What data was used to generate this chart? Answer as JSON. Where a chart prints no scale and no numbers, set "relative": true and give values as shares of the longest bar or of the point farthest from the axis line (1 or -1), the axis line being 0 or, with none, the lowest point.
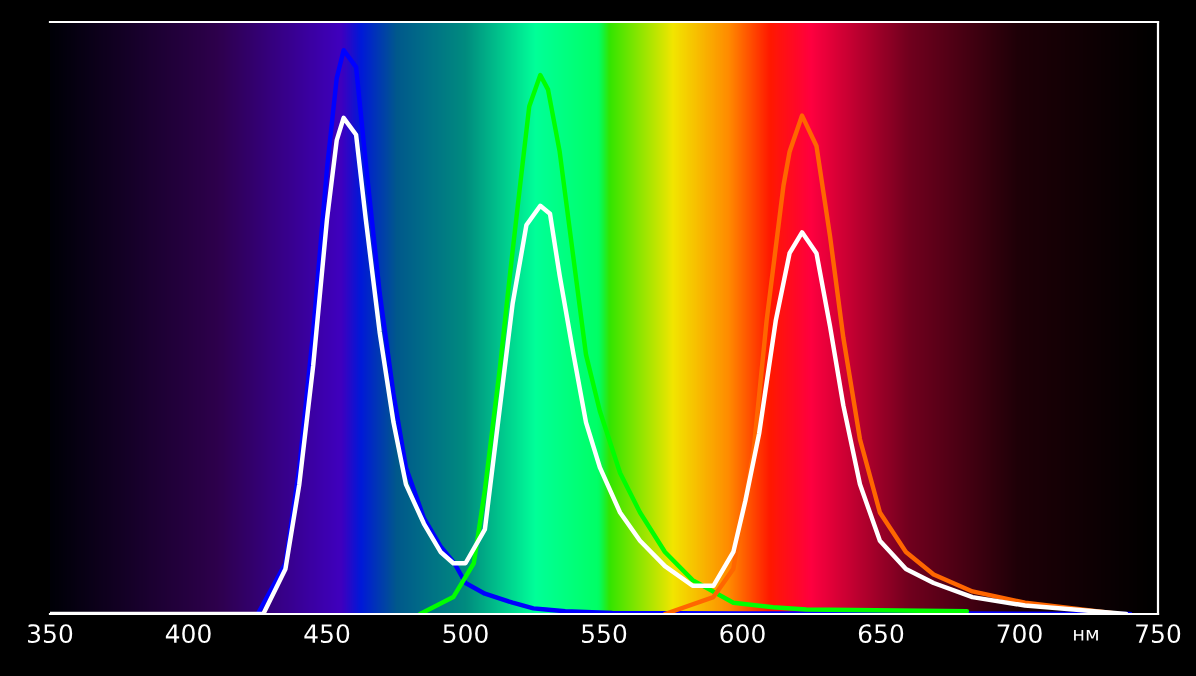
{
  "chart_data": {
    "type": "line",
    "relative": true,
    "xlabel": "нм",
    "xlim": [
      350,
      750
    ],
    "xticks": [
      350,
      400,
      450,
      500,
      550,
      600,
      650,
      700,
      750
    ],
    "grid": false,
    "legend": false,
    "marker": "none",
    "line_style": "solid",
    "series": [
      {
        "color": "#0000ff",
        "x": [
          425,
          435,
          440,
          445,
          450,
          453.5,
          456,
          460.5,
          464,
          469,
          474,
          478.5,
          485,
          491,
          496,
          500,
          507,
          517,
          524.5,
          529,
          536,
          553,
          600,
          680,
          740
        ],
        "values": [
          0,
          0.09,
          0.26,
          0.5,
          0.79,
          0.95,
          1.0,
          0.97,
          0.8,
          0.57,
          0.39,
          0.26,
          0.17,
          0.12,
          0.09,
          0.055,
          0.036,
          0.02,
          0.01,
          0.008,
          0.005,
          0.002,
          0.001,
          0.001,
          0
        ]
      },
      {
        "color": "#00ff00",
        "x": [
          483.6,
          495.6,
          503,
          507,
          512.5,
          516,
          519.7,
          523,
          527,
          529.8,
          534,
          539,
          543.5,
          548.5,
          555.8,
          563,
          572,
          582,
          596.7,
          611,
          623,
          681
        ],
        "values": [
          0,
          0.03,
          0.09,
          0.22,
          0.44,
          0.6,
          0.76,
          0.9,
          0.956,
          0.93,
          0.82,
          0.63,
          0.46,
          0.36,
          0.25,
          0.18,
          0.11,
          0.06,
          0.02,
          0.012,
          0.008,
          0.005
        ]
      },
      {
        "color": "#ff6600",
        "x": [
          572,
          589.5,
          596.7,
          604,
          608.7,
          614.8,
          617,
          621.5,
          626.7,
          631.6,
          636.4,
          642.4,
          649.6,
          659,
          669,
          683,
          702,
          719.5,
          736
        ],
        "values": [
          0,
          0.03,
          0.08,
          0.29,
          0.52,
          0.76,
          0.82,
          0.884,
          0.83,
          0.67,
          0.49,
          0.31,
          0.18,
          0.11,
          0.07,
          0.04,
          0.02,
          0.01,
          0
        ]
      },
      {
        "color": "#ffffff",
        "x": [
          350,
          427,
          435,
          440,
          445,
          450,
          453.5,
          456,
          460.5,
          464,
          469,
          474,
          478.5,
          485,
          491,
          495.6,
          500,
          507,
          512.5,
          517,
          522,
          527,
          530.5,
          534,
          539,
          543.5,
          548.5,
          555.8,
          563,
          572,
          582,
          589.5,
          596.7,
          601,
          606,
          612,
          617,
          621.5,
          626.7,
          631.6,
          636.4,
          642.4,
          649.6,
          659,
          669,
          683,
          702,
          719.5,
          738.5
        ],
        "values": [
          0,
          0,
          0.08,
          0.23,
          0.44,
          0.7,
          0.84,
          0.88,
          0.85,
          0.7,
          0.5,
          0.34,
          0.23,
          0.16,
          0.11,
          0.09,
          0.09,
          0.15,
          0.37,
          0.55,
          0.69,
          0.724,
          0.71,
          0.6,
          0.46,
          0.34,
          0.26,
          0.18,
          0.13,
          0.085,
          0.05,
          0.05,
          0.11,
          0.2,
          0.32,
          0.52,
          0.64,
          0.677,
          0.64,
          0.51,
          0.37,
          0.23,
          0.13,
          0.08,
          0.055,
          0.03,
          0.015,
          0.008,
          0
        ]
      }
    ]
  }
}
